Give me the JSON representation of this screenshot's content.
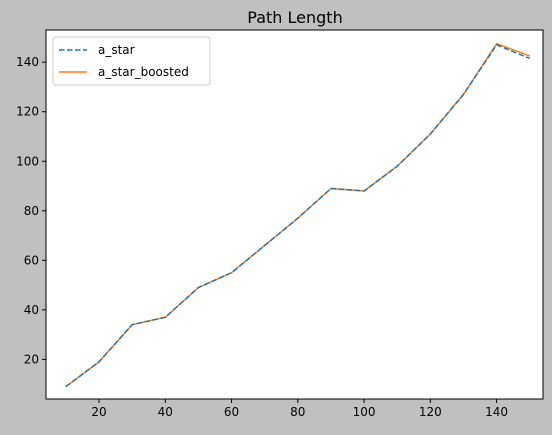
{
  "chart_data": {
    "type": "line",
    "title": "Path Length",
    "xlabel": "",
    "ylabel": "",
    "xlim": [
      4,
      154
    ],
    "ylim": [
      4,
      153
    ],
    "xticks": [
      20,
      40,
      60,
      80,
      100,
      120,
      140
    ],
    "yticks": [
      20,
      40,
      60,
      80,
      100,
      120,
      140
    ],
    "grid": false,
    "legend_position": "top-left",
    "x": [
      10,
      20,
      30,
      40,
      50,
      60,
      70,
      80,
      90,
      100,
      110,
      120,
      130,
      140,
      150
    ],
    "series": [
      {
        "name": "a_star",
        "color": "#1f77b4",
        "linestyle": "dashed",
        "values": [
          9,
          19,
          34,
          37,
          49,
          55,
          66,
          77,
          89,
          88,
          98,
          111,
          127,
          147,
          141.5
        ]
      },
      {
        "name": "a_star_boosted",
        "color": "#ff7f0e",
        "linestyle": "solid",
        "values": [
          9,
          19,
          34,
          37,
          49,
          55,
          66,
          77,
          89,
          88,
          98,
          111,
          127,
          147.5,
          142.5
        ]
      }
    ]
  }
}
